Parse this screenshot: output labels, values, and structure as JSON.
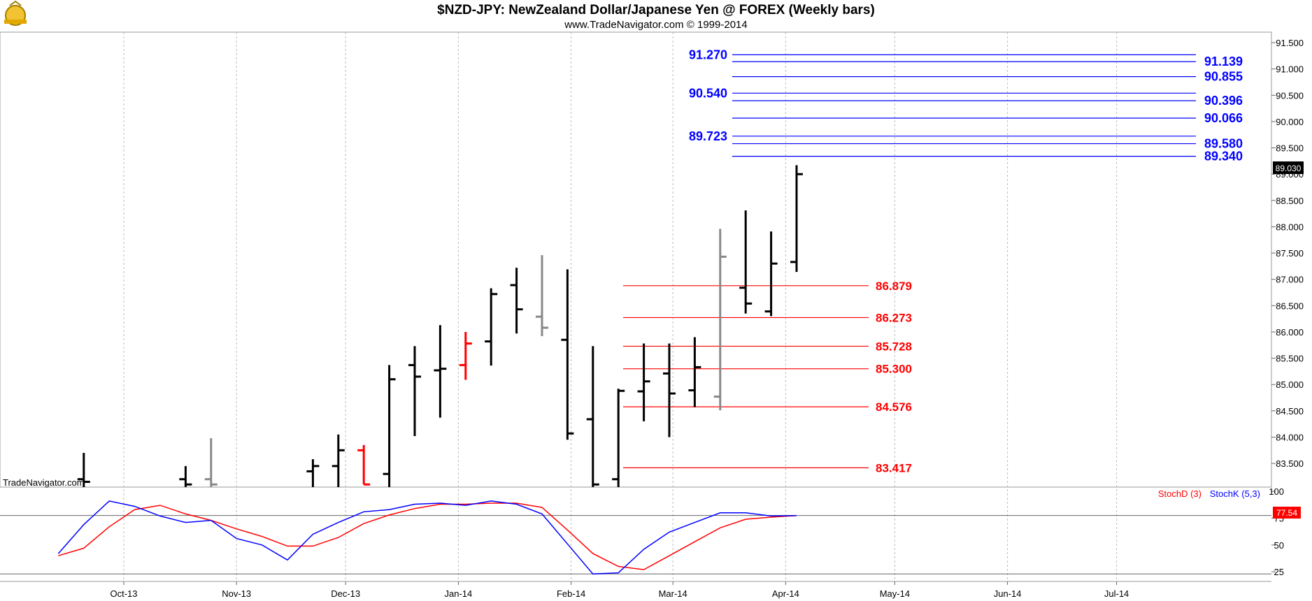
{
  "header": {
    "title": "$NZD-JPY:  NewZealand Dollar/Japanese Yen @ FOREX  (Weekly bars)",
    "subtitle": "www.TradeNavigator.com © 1999-2014",
    "logo_icon": "trade-navigator-logo-icon"
  },
  "watermark": "TradeNavigator.com",
  "last_price_label": "89.030",
  "colors": {
    "up_bar": "#000000",
    "down_bar": "#888888",
    "red_bar": "#ff0000",
    "fib_blue": "#0000ff",
    "fib_red": "#ff0000",
    "stoch_d": "#ff0000",
    "stoch_k": "#0000ff",
    "grid": "#bbbbbb"
  },
  "chart_data": [
    {
      "type": "ohlc",
      "name": "price",
      "ylim": [
        83.05,
        91.7
      ],
      "y_ticks": [
        "83.500",
        "84.000",
        "84.500",
        "85.000",
        "85.500",
        "86.000",
        "86.500",
        "87.000",
        "87.500",
        "88.000",
        "88.500",
        "89.000",
        "89.500",
        "90.000",
        "90.500",
        "91.000",
        "91.500"
      ],
      "x_ticks": [
        "Oct-13",
        "Nov-13",
        "Dec-13",
        "Jan-14",
        "Feb-14",
        "Mar-14",
        "Apr-14",
        "May-14",
        "Jun-14",
        "Jul-14"
      ],
      "bars": [
        {
          "date": "2013-09-20",
          "high": 83.7,
          "low": 83.05,
          "open": 83.2,
          "close": 83.15,
          "color": "black"
        },
        {
          "date": "2013-10-18",
          "high": 83.45,
          "low": 83.05,
          "open": 83.2,
          "close": 83.1,
          "color": "black"
        },
        {
          "date": "2013-10-25",
          "high": 83.98,
          "low": 83.05,
          "open": 83.2,
          "close": 83.1,
          "color": "gray"
        },
        {
          "date": "2013-11-22",
          "high": 83.58,
          "low": 83.05,
          "open": 83.35,
          "close": 83.45,
          "color": "black"
        },
        {
          "date": "2013-11-29",
          "high": 84.05,
          "low": 83.05,
          "open": 83.45,
          "close": 83.75,
          "color": "black"
        },
        {
          "date": "2013-12-06",
          "high": 83.85,
          "low": 83.1,
          "open": 83.75,
          "close": 83.1,
          "color": "red"
        },
        {
          "date": "2013-12-13",
          "high": 85.37,
          "low": 83.05,
          "open": 83.3,
          "close": 85.1,
          "color": "black"
        },
        {
          "date": "2013-12-20",
          "high": 85.73,
          "low": 84.02,
          "open": 85.37,
          "close": 85.15,
          "color": "black"
        },
        {
          "date": "2013-12-27",
          "high": 86.13,
          "low": 84.37,
          "open": 85.27,
          "close": 85.3,
          "color": "black"
        },
        {
          "date": "2014-01-03",
          "high": 86.0,
          "low": 85.09,
          "open": 85.37,
          "close": 85.78,
          "color": "red"
        },
        {
          "date": "2014-01-10",
          "high": 86.83,
          "low": 85.36,
          "open": 85.82,
          "close": 86.72,
          "color": "black"
        },
        {
          "date": "2014-01-17",
          "high": 87.22,
          "low": 85.97,
          "open": 86.89,
          "close": 86.43,
          "color": "black"
        },
        {
          "date": "2014-01-24",
          "high": 87.46,
          "low": 85.92,
          "open": 86.29,
          "close": 86.08,
          "color": "gray"
        },
        {
          "date": "2014-01-31",
          "high": 87.19,
          "low": 83.95,
          "open": 85.85,
          "close": 84.07,
          "color": "black"
        },
        {
          "date": "2014-02-07",
          "high": 85.73,
          "low": 83.05,
          "open": 84.34,
          "close": 83.1,
          "color": "black"
        },
        {
          "date": "2014-02-14",
          "high": 84.92,
          "low": 83.05,
          "open": 83.2,
          "close": 84.88,
          "color": "black"
        },
        {
          "date": "2014-02-21",
          "high": 85.78,
          "low": 84.3,
          "open": 84.87,
          "close": 85.06,
          "color": "black"
        },
        {
          "date": "2014-02-28",
          "high": 85.78,
          "low": 84.0,
          "open": 85.21,
          "close": 84.83,
          "color": "black"
        },
        {
          "date": "2014-03-07",
          "high": 85.9,
          "low": 84.57,
          "open": 84.89,
          "close": 85.33,
          "color": "black"
        },
        {
          "date": "2014-03-14",
          "high": 87.96,
          "low": 84.51,
          "open": 84.77,
          "close": 87.43,
          "color": "gray"
        },
        {
          "date": "2014-03-21",
          "high": 88.31,
          "low": 86.35,
          "open": 86.84,
          "close": 86.54,
          "color": "black"
        },
        {
          "date": "2014-03-28",
          "high": 87.91,
          "low": 86.3,
          "open": 86.39,
          "close": 87.3,
          "color": "black"
        },
        {
          "date": "2014-04-04",
          "high": 89.17,
          "low": 87.14,
          "open": 87.33,
          "close": 89.0,
          "color": "black"
        }
      ],
      "resistance_levels": [
        "91.270",
        "91.139",
        "90.855",
        "90.540",
        "90.396",
        "90.066",
        "89.723",
        "89.580",
        "89.340"
      ],
      "support_levels": [
        "86.879",
        "86.273",
        "85.728",
        "85.300",
        "84.576",
        "83.417"
      ]
    },
    {
      "type": "line",
      "name": "stochastic",
      "ylim": [
        16,
        104
      ],
      "y_ticks": [
        "25",
        "50",
        "75",
        "100"
      ],
      "reference_lines": [
        77.54,
        23
      ],
      "value_label": "77.54",
      "series": [
        {
          "name": "StochD (3)",
          "color": "#ff0000",
          "values": [
            40,
            47,
            67,
            83,
            87,
            79,
            73,
            65,
            58,
            49,
            49,
            57,
            70,
            78,
            84,
            88,
            88,
            89,
            89,
            85,
            64,
            42,
            30,
            27,
            40,
            53,
            66,
            74,
            76,
            77.5
          ]
        },
        {
          "name": "StochK (5,3)",
          "color": "#0000ff",
          "values": [
            42,
            69,
            91,
            86,
            77,
            71,
            73,
            56,
            50,
            36,
            60,
            71,
            81,
            83,
            88,
            89,
            87,
            91,
            88,
            79,
            51,
            23,
            24,
            46,
            62,
            71,
            80,
            80,
            77,
            77.5
          ]
        }
      ]
    }
  ]
}
